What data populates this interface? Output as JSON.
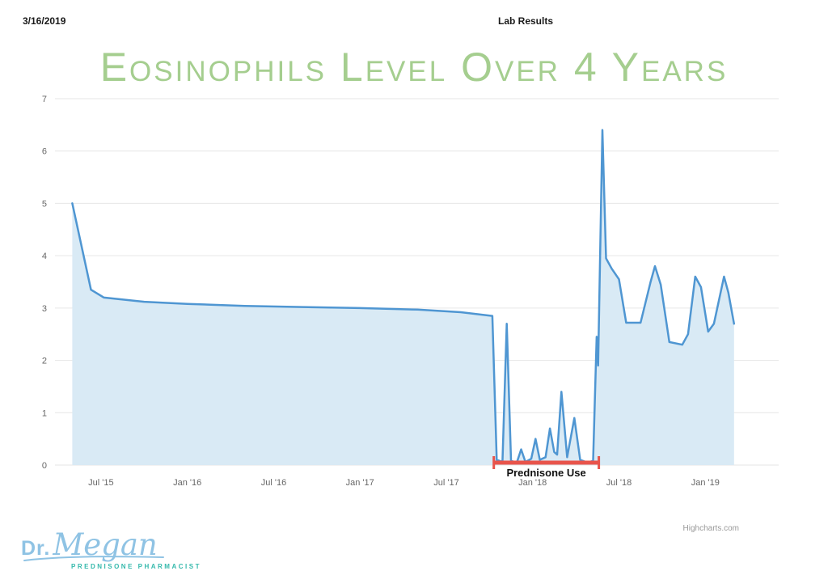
{
  "header": {
    "date": "3/16/2019",
    "label": "Lab Results"
  },
  "chart_data": {
    "type": "area",
    "title": "Eosinophils Level Over 4 Years",
    "xlabel": "",
    "ylabel": "",
    "ylim": [
      0,
      7
    ],
    "y_ticks": [
      0,
      1,
      2,
      3,
      4,
      5,
      6,
      7
    ],
    "grid": "horizontal",
    "legend": "none",
    "x_axis": {
      "unit": "months since 2015-01",
      "min": 2.8,
      "max": 53.1,
      "ticks": [
        {
          "m": 6,
          "label": "Jul '15"
        },
        {
          "m": 12,
          "label": "Jan '16"
        },
        {
          "m": 18,
          "label": "Jul '16"
        },
        {
          "m": 24,
          "label": "Jan '17"
        },
        {
          "m": 30,
          "label": "Jul '17"
        },
        {
          "m": 36,
          "label": "Jan '18"
        },
        {
          "m": 42,
          "label": "Jul '18"
        },
        {
          "m": 48,
          "label": "Jan '19"
        }
      ]
    },
    "series": [
      {
        "name": "Eosinophils",
        "color": "#4f96d2",
        "fill_color": "#d9eaf5",
        "points": [
          [
            4.0,
            5.0
          ],
          [
            5.3,
            3.35
          ],
          [
            6.2,
            3.2
          ],
          [
            9,
            3.12
          ],
          [
            12,
            3.08
          ],
          [
            16,
            3.04
          ],
          [
            20,
            3.02
          ],
          [
            24,
            3.0
          ],
          [
            28,
            2.97
          ],
          [
            31,
            2.92
          ],
          [
            33.2,
            2.85
          ],
          [
            33.5,
            0.1
          ],
          [
            33.9,
            0.06
          ],
          [
            34.2,
            2.7
          ],
          [
            34.5,
            0.08
          ],
          [
            34.9,
            0.05
          ],
          [
            35.2,
            0.3
          ],
          [
            35.5,
            0.06
          ],
          [
            35.9,
            0.12
          ],
          [
            36.2,
            0.5
          ],
          [
            36.5,
            0.1
          ],
          [
            36.9,
            0.15
          ],
          [
            37.2,
            0.7
          ],
          [
            37.5,
            0.25
          ],
          [
            37.7,
            0.2
          ],
          [
            38.0,
            1.4
          ],
          [
            38.4,
            0.15
          ],
          [
            38.9,
            0.9
          ],
          [
            39.3,
            0.1
          ],
          [
            39.8,
            0.05
          ],
          [
            40.2,
            0.08
          ],
          [
            40.45,
            2.45
          ],
          [
            40.55,
            1.9
          ],
          [
            40.85,
            6.4
          ],
          [
            41.1,
            3.95
          ],
          [
            41.5,
            3.75
          ],
          [
            42.0,
            3.55
          ],
          [
            42.5,
            2.72
          ],
          [
            43.5,
            2.72
          ],
          [
            44.2,
            3.5
          ],
          [
            44.5,
            3.8
          ],
          [
            44.9,
            3.45
          ],
          [
            45.5,
            2.35
          ],
          [
            46.4,
            2.3
          ],
          [
            46.8,
            2.5
          ],
          [
            47.3,
            3.6
          ],
          [
            47.7,
            3.4
          ],
          [
            48.2,
            2.55
          ],
          [
            48.6,
            2.7
          ],
          [
            49.3,
            3.6
          ],
          [
            49.6,
            3.3
          ],
          [
            50.0,
            2.7
          ]
        ]
      }
    ],
    "annotation": {
      "label": "Prednisone Use",
      "x_start_m": 33.3,
      "x_end_m": 40.6,
      "color": "#e8544b"
    }
  },
  "footer": {
    "credit": "Highcharts.com"
  },
  "logo": {
    "dr": "Dr.",
    "megan": "Megan",
    "tagline": "Prednisone Pharmacist"
  },
  "colors": {
    "title_green": "#a5ce8f",
    "line_blue": "#4f96d2",
    "fill_blue": "#d9eaf5",
    "annotation_red": "#e8544b",
    "grid": "#e6e6e6",
    "axis_label": "#666666",
    "logo_blue": "#8fc3e4",
    "logo_teal": "#35b9ac"
  }
}
